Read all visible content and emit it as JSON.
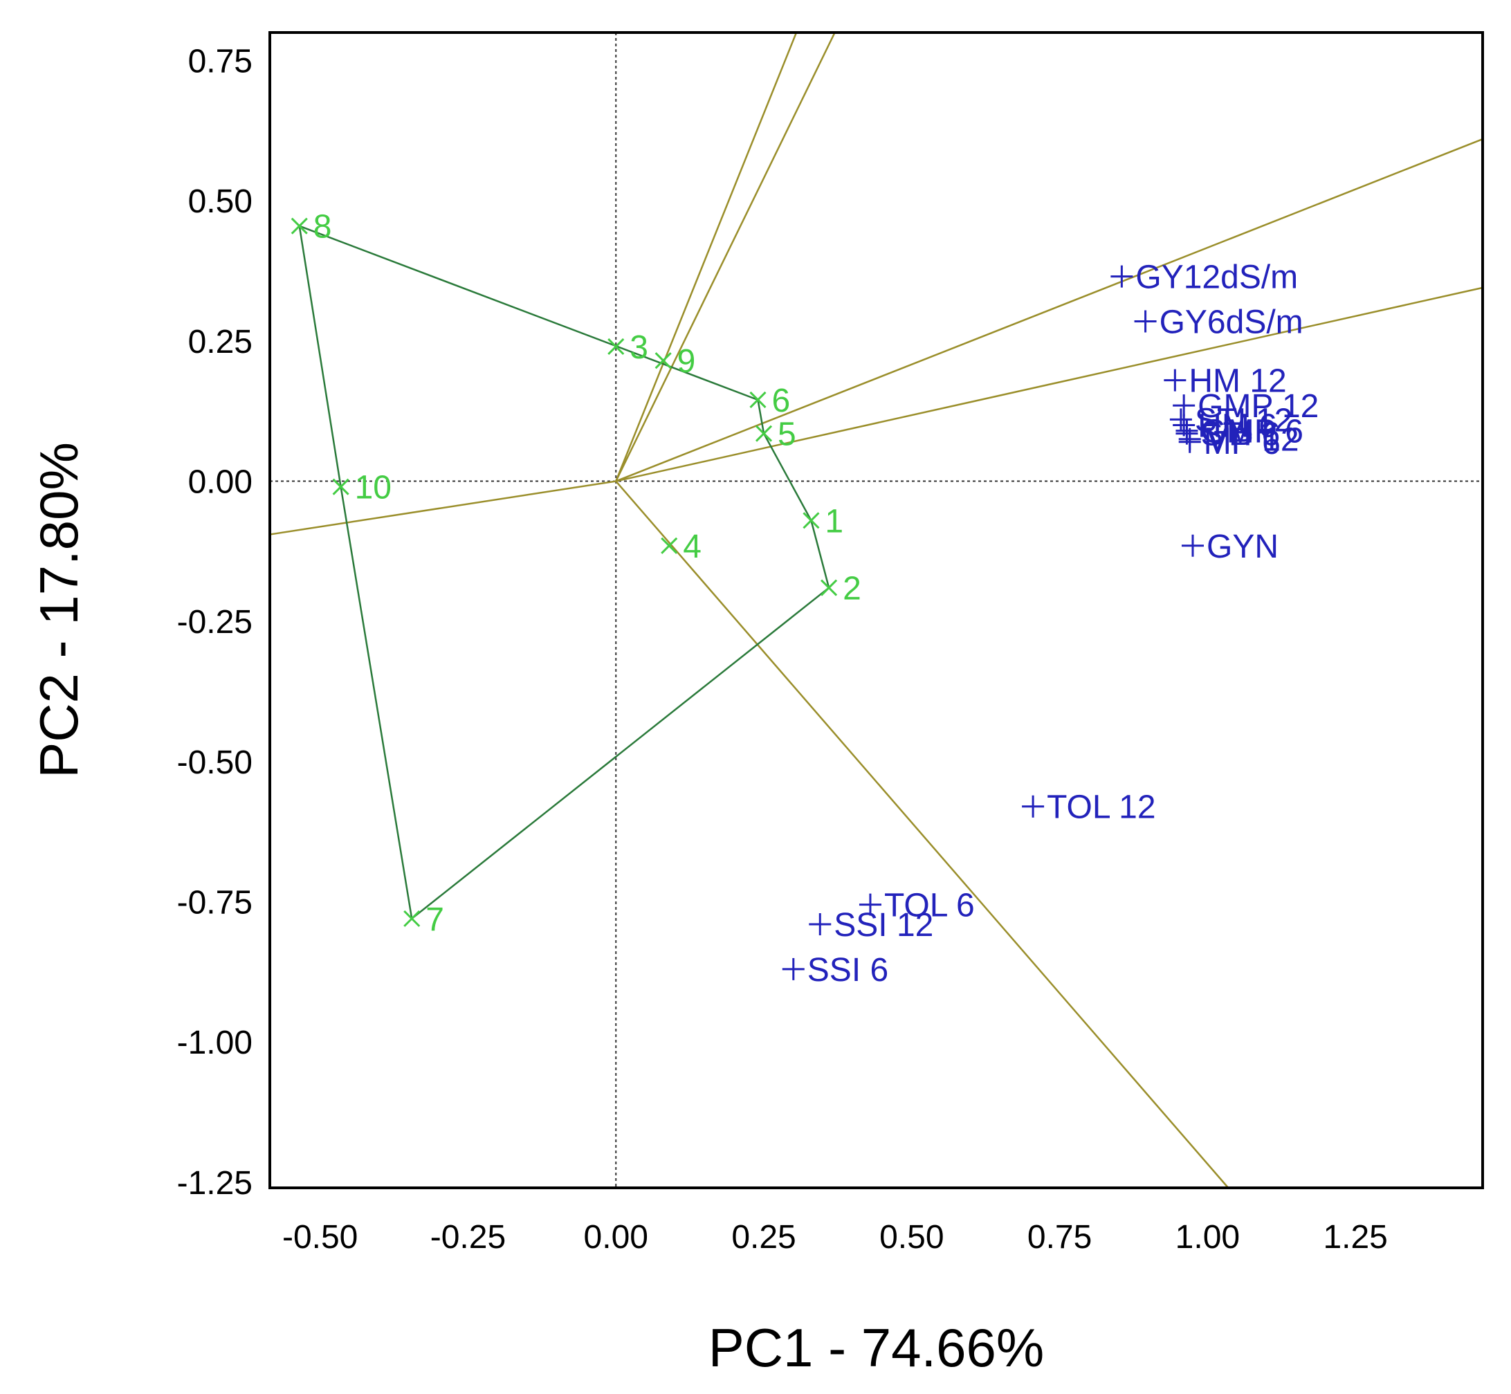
{
  "chart_data": {
    "type": "scatter",
    "subtype": "GGE biplot (which-won-where polygon view)",
    "xlabel": "PC1 - 74.66%",
    "ylabel": "PC2 - 17.80%",
    "xlim": [
      -0.585,
      1.465
    ],
    "ylim": [
      -1.26,
      0.8
    ],
    "xticks": [
      -0.5,
      -0.25,
      0.0,
      0.25,
      0.5,
      0.75,
      1.0,
      1.25
    ],
    "xtick_labels": [
      "-0.50",
      "-0.25",
      "0.00",
      "0.25",
      "0.50",
      "0.75",
      "1.00",
      "1.25"
    ],
    "yticks": [
      0.75,
      0.5,
      0.25,
      0.0,
      -0.25,
      -0.5,
      -0.75,
      -1.0,
      -1.25
    ],
    "ytick_labels": [
      "0.75",
      "0.50",
      "0.25",
      "0.00",
      "-0.25",
      "-0.50",
      "-0.75",
      "-1.00",
      "-1.25"
    ],
    "origin_reference_lines": true,
    "colors": {
      "genotype": "#44cc44",
      "trait": "#2222bb",
      "polygon": "#2a7a3a",
      "ray": "#9a8e2a",
      "reference": "#333333",
      "frame": "#000000"
    },
    "genotypes": [
      {
        "label": "1",
        "x": 0.33,
        "y": -0.07
      },
      {
        "label": "2",
        "x": 0.36,
        "y": -0.19
      },
      {
        "label": "3",
        "x": 0.0,
        "y": 0.24
      },
      {
        "label": "4",
        "x": 0.09,
        "y": -0.115
      },
      {
        "label": "5",
        "x": 0.25,
        "y": 0.085
      },
      {
        "label": "6",
        "x": 0.24,
        "y": 0.145
      },
      {
        "label": "7",
        "x": -0.345,
        "y": -0.78
      },
      {
        "label": "8",
        "x": -0.535,
        "y": 0.455
      },
      {
        "label": "9",
        "x": 0.08,
        "y": 0.215
      },
      {
        "label": "10",
        "x": -0.465,
        "y": -0.01
      }
    ],
    "polygon_order": [
      "8",
      "6",
      "5",
      "1",
      "2",
      "7",
      "10",
      "8"
    ],
    "rays": [
      {
        "from": [
          0,
          0
        ],
        "to": [
          0.305,
          0.8
        ]
      },
      {
        "from": [
          0,
          0
        ],
        "to": [
          0.37,
          0.8
        ]
      },
      {
        "from": [
          0,
          0
        ],
        "to": [
          1.465,
          0.61
        ]
      },
      {
        "from": [
          0,
          0
        ],
        "to": [
          1.465,
          0.345
        ]
      },
      {
        "from": [
          0,
          0
        ],
        "to": [
          1.035,
          -1.26
        ]
      },
      {
        "from": [
          0,
          0
        ],
        "to": [
          -0.585,
          -0.095
        ]
      }
    ],
    "traits": [
      {
        "label": "GY12dS/m",
        "x": 0.855,
        "y": 0.365
      },
      {
        "label": "GY6dS/m",
        "x": 0.895,
        "y": 0.285
      },
      {
        "label": "HM 12",
        "x": 0.945,
        "y": 0.18
      },
      {
        "label": "GMP 12",
        "x": 0.96,
        "y": 0.135
      },
      {
        "label": "STI 12",
        "x": 0.955,
        "y": 0.11
      },
      {
        "label": "HM 6",
        "x": 0.96,
        "y": 0.1
      },
      {
        "label": "GMP 6",
        "x": 0.965,
        "y": 0.09
      },
      {
        "label": "STI 6",
        "x": 0.965,
        "y": 0.085
      },
      {
        "label": "MP 12",
        "x": 0.97,
        "y": 0.075
      },
      {
        "label": "MP 6",
        "x": 0.97,
        "y": 0.07
      },
      {
        "label": "GYN",
        "x": 0.975,
        "y": -0.115
      },
      {
        "label": "TOL 12",
        "x": 0.705,
        "y": -0.58
      },
      {
        "label": "TOL 6",
        "x": 0.43,
        "y": -0.755
      },
      {
        "label": "SSI 12",
        "x": 0.345,
        "y": -0.79
      },
      {
        "label": "SSI 6",
        "x": 0.3,
        "y": -0.87
      }
    ]
  }
}
